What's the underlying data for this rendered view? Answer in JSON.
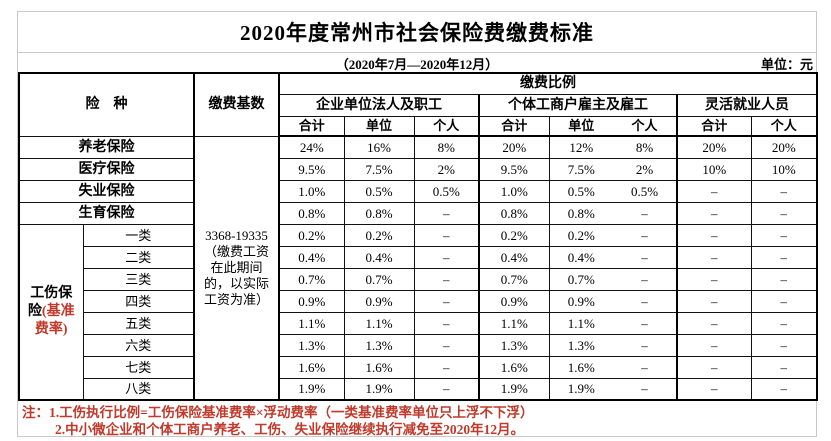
{
  "theme": {
    "accent_red": "#c0392b",
    "table_border": "#000000",
    "page_border": "#c9c9c9"
  },
  "header": {
    "title": "2020年度常州市社会保险费缴费标准",
    "subtitle": "（2020年7月—2020年12月）",
    "unit": "单位：元"
  },
  "table": {
    "corner": {
      "insurance": "险　种",
      "base": "缴费基数",
      "ratio": "缴费比例"
    },
    "groups": [
      {
        "label": "企业单位法人及职工",
        "cols": [
          "合计",
          "单位",
          "个人"
        ]
      },
      {
        "label": "个体工商户雇主及雇工",
        "cols": [
          "合计",
          "单位",
          "个人"
        ]
      },
      {
        "label": "灵活就业人员",
        "cols": [
          "合计",
          "个人"
        ]
      }
    ],
    "base_value": "3368-19335\n（缴费工资\n在此期间\n的，以实际\n工资为准）",
    "injury": {
      "black": "工伤保险",
      "red": "(基准费率)"
    },
    "rows": [
      {
        "label": "养老保险",
        "kind": "full",
        "values": [
          "24%",
          "16%",
          "8%",
          "20%",
          "12%",
          "8%",
          "20%",
          "20%"
        ]
      },
      {
        "label": "医疗保险",
        "kind": "full",
        "values": [
          "9.5%",
          "7.5%",
          "2%",
          "9.5%",
          "7.5%",
          "2%",
          "10%",
          "10%"
        ]
      },
      {
        "label": "失业保险",
        "kind": "full",
        "values": [
          "1.0%",
          "0.5%",
          "0.5%",
          "1.0%",
          "0.5%",
          "0.5%",
          "–",
          "–"
        ]
      },
      {
        "label": "生育保险",
        "kind": "full",
        "values": [
          "0.8%",
          "0.8%",
          "–",
          "0.8%",
          "0.8%",
          "–",
          "–",
          "–"
        ]
      },
      {
        "label": "一类",
        "kind": "category",
        "values": [
          "0.2%",
          "0.2%",
          "–",
          "0.2%",
          "0.2%",
          "–",
          "–",
          "–"
        ]
      },
      {
        "label": "二类",
        "kind": "category",
        "values": [
          "0.4%",
          "0.4%",
          "–",
          "0.4%",
          "0.4%",
          "–",
          "–",
          "–"
        ]
      },
      {
        "label": "三类",
        "kind": "category",
        "values": [
          "0.7%",
          "0.7%",
          "–",
          "0.7%",
          "0.7%",
          "–",
          "–",
          "–"
        ]
      },
      {
        "label": "四类",
        "kind": "category",
        "values": [
          "0.9%",
          "0.9%",
          "–",
          "0.9%",
          "0.9%",
          "–",
          "–",
          "–"
        ]
      },
      {
        "label": "五类",
        "kind": "category",
        "values": [
          "1.1%",
          "1.1%",
          "–",
          "1.1%",
          "1.1%",
          "–",
          "–",
          "–"
        ]
      },
      {
        "label": "六类",
        "kind": "category",
        "values": [
          "1.3%",
          "1.3%",
          "–",
          "1.3%",
          "1.3%",
          "–",
          "–",
          "–"
        ]
      },
      {
        "label": "七类",
        "kind": "category",
        "values": [
          "1.6%",
          "1.6%",
          "–",
          "1.6%",
          "1.6%",
          "–",
          "–",
          "–"
        ]
      },
      {
        "label": "八类",
        "kind": "category",
        "values": [
          "1.9%",
          "1.9%",
          "–",
          "1.9%",
          "1.9%",
          "–",
          "–",
          "–"
        ]
      }
    ]
  },
  "notes": {
    "line1": "注：1.工伤执行比例=工伤保险基准费率×浮动费率（一类基准费率单位只上浮不下浮）",
    "line2": "2.中小微企业和个体工商户养老、工伤、失业保险继续执行减免至2020年12月。"
  }
}
